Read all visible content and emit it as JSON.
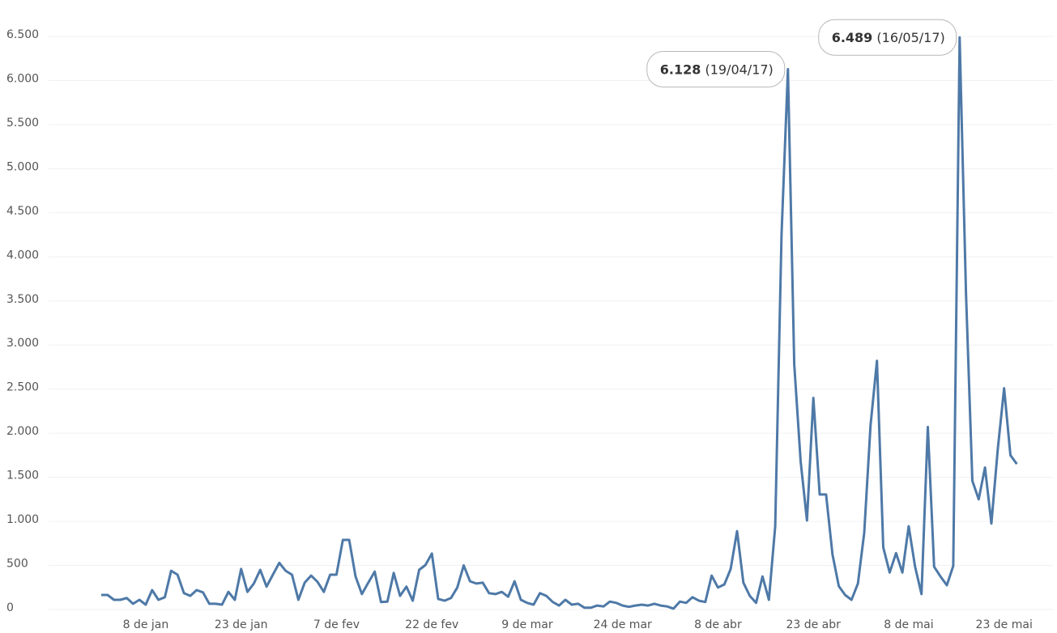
{
  "chart_data": {
    "type": "line",
    "categories": [
      null,
      null,
      null,
      null,
      null,
      null,
      null,
      "8 de jan",
      null,
      null,
      null,
      null,
      null,
      null,
      null,
      null,
      null,
      null,
      null,
      null,
      null,
      null,
      "23 de jan",
      null,
      null,
      null,
      null,
      null,
      null,
      null,
      null,
      null,
      null,
      null,
      null,
      null,
      null,
      "7 de fev",
      null,
      null,
      null,
      null,
      null,
      null,
      null,
      null,
      null,
      null,
      null,
      null,
      null,
      null,
      "22 de fev",
      null,
      null,
      null,
      null,
      null,
      null,
      null,
      null,
      null,
      null,
      null,
      null,
      null,
      null,
      "9 de mar",
      null,
      null,
      null,
      null,
      null,
      null,
      null,
      null,
      null,
      null,
      null,
      null,
      null,
      null,
      "24 de mar",
      null,
      null,
      null,
      null,
      null,
      null,
      null,
      null,
      null,
      null,
      null,
      null,
      null,
      null,
      "8 de abr",
      null,
      null,
      null,
      null,
      null,
      null,
      null,
      null,
      null,
      null,
      null,
      null,
      null,
      null,
      "23 de abr",
      null,
      null,
      null,
      null,
      null,
      null,
      null,
      null,
      null,
      null,
      null,
      null,
      null,
      null,
      "8 de mai",
      null,
      null,
      null,
      null,
      null,
      null,
      null,
      null,
      null,
      null,
      null,
      null,
      null,
      null,
      "23 de mai",
      null,
      null
    ],
    "series": [
      {
        "color": "#4e79a7",
        "values": [
          165,
          165,
          110,
          110,
          130,
          65,
          110,
          55,
          220,
          110,
          140,
          440,
          395,
          185,
          155,
          220,
          195,
          65,
          65,
          55,
          200,
          110,
          460,
          200,
          295,
          450,
          260,
          395,
          530,
          440,
          395,
          110,
          305,
          385,
          315,
          200,
          395,
          395,
          790,
          790,
          375,
          175,
          305,
          430,
          85,
          90,
          415,
          155,
          260,
          100,
          450,
          505,
          635,
          120,
          100,
          130,
          250,
          500,
          320,
          295,
          305,
          185,
          175,
          200,
          145,
          320,
          110,
          75,
          55,
          185,
          155,
          85,
          45,
          110,
          55,
          65,
          20,
          20,
          45,
          35,
          90,
          75,
          45,
          30,
          45,
          55,
          45,
          65,
          45,
          35,
          10,
          90,
          75,
          140,
          100,
          85,
          385,
          250,
          285,
          460,
          890,
          305,
          155,
          75,
          375,
          110,
          945,
          4250,
          6128,
          2780,
          1680,
          1010,
          2400,
          1305,
          1305,
          625,
          265,
          165,
          110,
          295,
          870,
          2090,
          2820,
          705,
          420,
          640,
          420,
          945,
          485,
          175,
          2070,
          485,
          375,
          275,
          495,
          6489,
          3600,
          1460,
          1250,
          1610,
          975,
          1810,
          2510,
          1750,
          1650
        ],
        "value_labels": [
          null,
          null,
          null,
          null,
          null,
          null,
          null,
          null,
          null,
          null,
          null,
          null,
          null,
          null,
          null,
          null,
          null,
          null,
          null,
          null,
          null,
          null,
          null,
          null,
          null,
          null,
          null,
          null,
          null,
          null,
          null,
          null,
          null,
          null,
          null,
          null,
          null,
          null,
          null,
          null,
          null,
          null,
          null,
          null,
          null,
          null,
          null,
          null,
          null,
          null,
          null,
          null,
          null,
          null,
          null,
          null,
          null,
          null,
          null,
          null,
          null,
          null,
          null,
          null,
          null,
          null,
          null,
          null,
          null,
          null,
          null,
          null,
          null,
          null,
          null,
          null,
          null,
          null,
          null,
          null,
          null,
          null,
          null,
          null,
          null,
          null,
          null,
          null,
          null,
          null,
          null,
          null,
          null,
          null,
          null,
          null,
          null,
          null,
          null,
          null,
          null,
          null,
          null,
          null,
          null,
          null,
          null,
          null,
          "6.128",
          null,
          null,
          null,
          null,
          null,
          null,
          null,
          null,
          null,
          null,
          null,
          null,
          null,
          null,
          null,
          null,
          null,
          null,
          null,
          null,
          null,
          null,
          null,
          null,
          null,
          null,
          "6.489",
          null,
          null,
          null,
          null,
          null,
          null,
          null,
          null,
          null
        ],
        "date_labels": [
          null,
          null,
          null,
          null,
          null,
          null,
          null,
          null,
          null,
          null,
          null,
          null,
          null,
          null,
          null,
          null,
          null,
          null,
          null,
          null,
          null,
          null,
          null,
          null,
          null,
          null,
          null,
          null,
          null,
          null,
          null,
          null,
          null,
          null,
          null,
          null,
          null,
          null,
          null,
          null,
          null,
          null,
          null,
          null,
          null,
          null,
          null,
          null,
          null,
          null,
          null,
          null,
          null,
          null,
          null,
          null,
          null,
          null,
          null,
          null,
          null,
          null,
          null,
          null,
          null,
          null,
          null,
          null,
          null,
          null,
          null,
          null,
          null,
          null,
          null,
          null,
          null,
          null,
          null,
          null,
          null,
          null,
          null,
          null,
          null,
          null,
          null,
          null,
          null,
          null,
          null,
          null,
          null,
          null,
          null,
          null,
          null,
          null,
          null,
          null,
          null,
          null,
          null,
          null,
          null,
          null,
          null,
          null,
          "(19/04/17)",
          null,
          null,
          null,
          null,
          null,
          null,
          null,
          null,
          null,
          null,
          null,
          null,
          null,
          null,
          null,
          null,
          null,
          null,
          null,
          null,
          null,
          null,
          null,
          null,
          null,
          null,
          "(16/05/17)",
          null,
          null,
          null,
          null,
          null,
          null,
          null,
          null,
          null
        ]
      }
    ],
    "ylim": [
      0,
      6500
    ],
    "yticks": [
      0,
      500,
      {
        "value": 1000,
        "label": "1.000"
      },
      {
        "value": 1500,
        "label": "1.500"
      },
      {
        "value": 2000,
        "label": "2.000"
      },
      {
        "value": 2500,
        "label": "2.500"
      },
      {
        "value": 3000,
        "label": "3.000"
      },
      {
        "value": 3500,
        "label": "3.500"
      },
      {
        "value": 4000,
        "label": "4.000"
      },
      {
        "value": 4500,
        "label": "4.500"
      },
      {
        "value": 5000,
        "label": "5.000"
      },
      {
        "value": 5500,
        "label": "5.500"
      },
      {
        "value": 6000,
        "label": "6.000"
      },
      {
        "value": 6500,
        "label": "6.500"
      }
    ],
    "grid": true
  }
}
